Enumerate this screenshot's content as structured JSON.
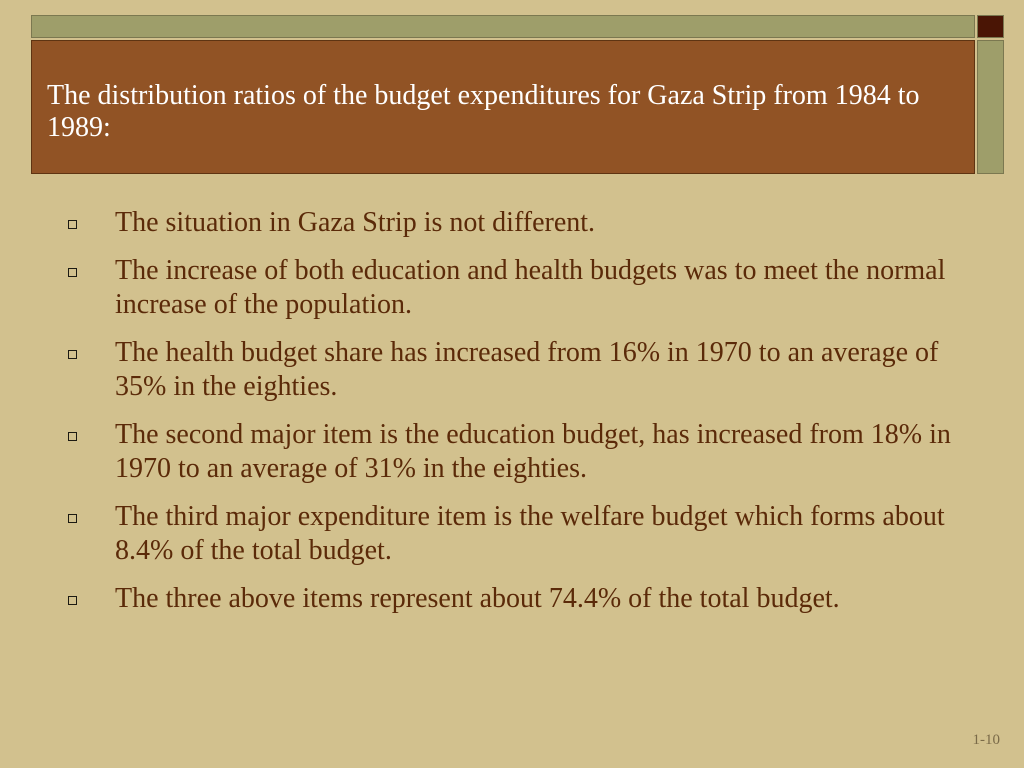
{
  "slide": {
    "title": "The distribution ratios of the budget expenditures for Gaza Strip from 1984 to 1989:",
    "bullets": [
      "The situation in Gaza Strip is not different.",
      "The increase of both education and health budgets was to meet the normal increase of the population.",
      "The health budget share has increased from 16% in 1970 to an average of 35% in the eighties.",
      "The second major item is the education budget, has increased from 18% in 1970 to an average of 31% in the eighties.",
      "The third major expenditure item is the welfare budget which forms about 8.4% of the total budget.",
      "The three above items represent about 74.4% of the total budget."
    ],
    "page_number": "1-10"
  },
  "icons": {
    "bullet": "hollow-square-bullet-icon"
  },
  "colors": {
    "background": "#d2c18e",
    "title_box": "#915325",
    "title_text": "#ffffff",
    "body_text": "#5b2a09",
    "accent_band": "#9e9e6a",
    "accent_square": "#4a1505"
  }
}
